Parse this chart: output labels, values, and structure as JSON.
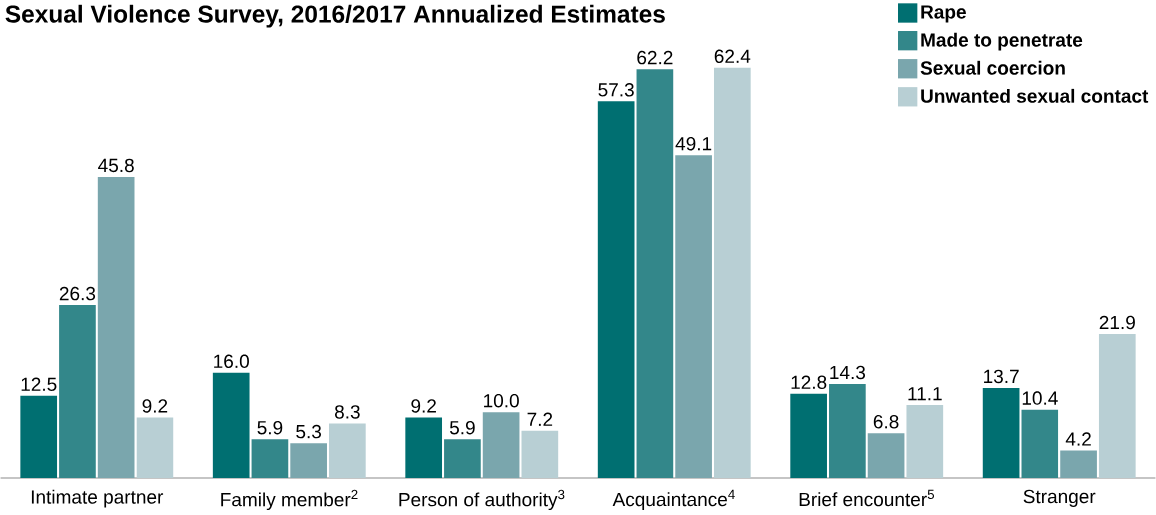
{
  "chart_data": {
    "type": "bar",
    "title": "Sexual Violence Survey, 2016/2017 Annualized Estimates",
    "categories": [
      "Intimate partner",
      "Family member$^{2}$",
      "Person of authority$^{3}$",
      "Acquaintance$^{4}$",
      "Brief encounter$^{5}$",
      "Stranger"
    ],
    "series": [
      {
        "name": "Rape",
        "color": "#006f71",
        "values": [
          12.5,
          16.0,
          9.2,
          57.3,
          12.8,
          13.7
        ],
        "value_labels": [
          "12.5",
          "16.0",
          "9.2",
          "57.3",
          "12.8",
          "13.7"
        ]
      },
      {
        "name": "Made to penetrate",
        "color": "#33878a",
        "values": [
          26.3,
          5.9,
          5.9,
          62.2,
          14.3,
          10.4
        ],
        "value_labels": [
          "26.3",
          "5.9",
          "5.9",
          "62.2",
          "14.3",
          "10.4"
        ]
      },
      {
        "name": "Sexual coercion",
        "color": "#7aa6ad",
        "values": [
          45.8,
          5.3,
          10.0,
          49.1,
          6.8,
          4.2
        ],
        "value_labels": [
          "45.8",
          "5.3",
          "10.0",
          "49.1",
          "6.8",
          "4.2"
        ]
      },
      {
        "name": "Unwanted sexual contact",
        "color": "#b8cfd4",
        "values": [
          9.2,
          8.3,
          7.2,
          62.4,
          11.1,
          21.9
        ],
        "value_labels": [
          "9.2",
          "8.3",
          "7.2",
          "62.4",
          "11.1",
          "21.9"
        ]
      }
    ],
    "legend": "top right"
  }
}
